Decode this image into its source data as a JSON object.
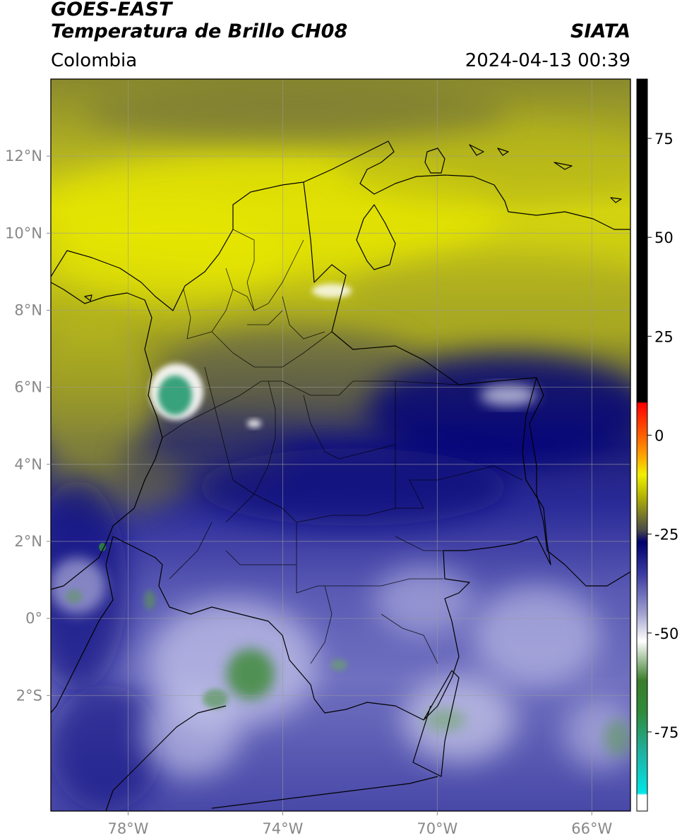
{
  "header": {
    "satellite": "GOES-EAST",
    "product": "Temperatura de Brillo CH08",
    "agency": "SIATA",
    "region": "Colombia",
    "datetime": "2024-04-13 00:39"
  },
  "map": {
    "lon_range": [
      -80,
      -65
    ],
    "lat_range": [
      -5,
      14
    ],
    "lon_ticks": [
      {
        "value": -78,
        "label": "78°W"
      },
      {
        "value": -74,
        "label": "74°W"
      },
      {
        "value": -70,
        "label": "70°W"
      },
      {
        "value": -66,
        "label": "66°W"
      }
    ],
    "lat_ticks": [
      {
        "value": 12,
        "label": "12°N"
      },
      {
        "value": 10,
        "label": "10°N"
      },
      {
        "value": 8,
        "label": "8°N"
      },
      {
        "value": 6,
        "label": "6°N"
      },
      {
        "value": 4,
        "label": "4°N"
      },
      {
        "value": 2,
        "label": "2°N"
      },
      {
        "value": 0,
        "label": "0°"
      },
      {
        "value": -2,
        "label": "2°S"
      }
    ],
    "gridlines": true
  },
  "colorbar": {
    "range": [
      -95,
      90
    ],
    "ticks": [
      {
        "value": 75,
        "label": "75"
      },
      {
        "value": 50,
        "label": "50"
      },
      {
        "value": 25,
        "label": "25"
      },
      {
        "value": 0,
        "label": "0"
      },
      {
        "value": -25,
        "label": "-25"
      },
      {
        "value": -50,
        "label": "-50"
      },
      {
        "value": -75,
        "label": "-75"
      }
    ],
    "stops": [
      {
        "value": -95,
        "color": "#ffffff"
      },
      {
        "value": -91,
        "color": "#ffffff"
      },
      {
        "value": -90.5,
        "color": "#00e6e6"
      },
      {
        "value": -80,
        "color": "#20b0a0"
      },
      {
        "value": -70,
        "color": "#2e8b3a"
      },
      {
        "value": -62,
        "color": "#3a7d2a"
      },
      {
        "value": -52,
        "color": "#ffffff"
      },
      {
        "value": -45,
        "color": "#a0a0d0"
      },
      {
        "value": -35,
        "color": "#3a3aa0"
      },
      {
        "value": -27,
        "color": "#00006e"
      },
      {
        "value": -24,
        "color": "#4a4a4a"
      },
      {
        "value": -15,
        "color": "#b9b900"
      },
      {
        "value": -10,
        "color": "#f0f000"
      },
      {
        "value": -5,
        "color": "#ffa000"
      },
      {
        "value": 0,
        "color": "#ff6000"
      },
      {
        "value": 8,
        "color": "#ff0000"
      },
      {
        "value": 8.5,
        "color": "#000000"
      },
      {
        "value": 90,
        "color": "#000000"
      }
    ]
  }
}
